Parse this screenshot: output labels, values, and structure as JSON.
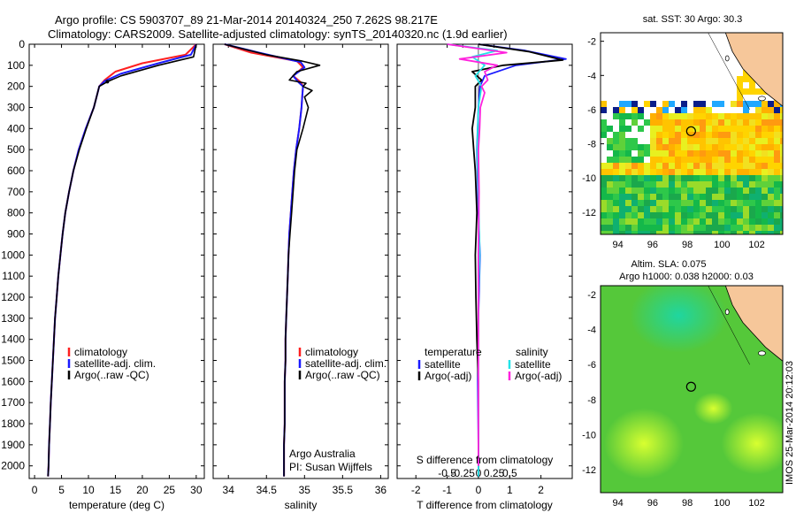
{
  "header": {
    "line1": "Argo profile: CS 5903707_89 21-Mar-2014 20140324_250 7.262S 98.217E",
    "line2": "Climatology: CARS2009. Satellite-adjusted climatology: synTS_20140320.nc (1.9d earlier)"
  },
  "credit": {
    "institution": "Argo Australia",
    "pi": "PI: Susan Wijffels"
  },
  "stamp": "IMOS 25-Mar-2014 20:12:03",
  "colors": {
    "climatology": "#ff2020",
    "satellite": "#1a1aff",
    "argo": "#000000",
    "sat_salinity": "#22e4e8",
    "argo_salinity": "#ff22dd"
  },
  "depth_axis": {
    "ticks": [
      0,
      100,
      200,
      300,
      400,
      500,
      600,
      700,
      800,
      900,
      1000,
      1100,
      1200,
      1300,
      1400,
      1500,
      1600,
      1700,
      1800,
      1900,
      2000
    ],
    "max": 2060
  },
  "chart_data": [
    {
      "type": "line",
      "xlabel": "temperature (deg C)",
      "xlim": [
        -1,
        31.5
      ],
      "xticks": [
        0,
        5,
        10,
        15,
        20,
        25,
        30
      ],
      "legend": [
        "climatology",
        "satellite-adj. clim.",
        "Argo(..raw -QC)"
      ],
      "series": [
        {
          "name": "climatology",
          "points": [
            [
              30,
              0
            ],
            [
              28,
              50
            ],
            [
              20,
              90
            ],
            [
              15,
              130
            ],
            [
              13,
              170
            ],
            [
              12,
              200
            ],
            [
              11,
              300
            ],
            [
              9.5,
              400
            ],
            [
              8.2,
              500
            ],
            [
              7.2,
              600
            ],
            [
              6.4,
              700
            ],
            [
              5.7,
              800
            ],
            [
              5.2,
              900
            ],
            [
              4.8,
              1000
            ],
            [
              4.4,
              1100
            ],
            [
              4.1,
              1200
            ],
            [
              3.8,
              1300
            ],
            [
              3.6,
              1400
            ],
            [
              3.4,
              1500
            ],
            [
              3.2,
              1600
            ],
            [
              3.0,
              1700
            ],
            [
              2.85,
              1800
            ],
            [
              2.7,
              1900
            ],
            [
              2.6,
              2000
            ],
            [
              2.5,
              2050
            ]
          ]
        },
        {
          "name": "satellite-adj. clim.",
          "points": [
            [
              30,
              0
            ],
            [
              29,
              50
            ],
            [
              23,
              90
            ],
            [
              16,
              140
            ],
            [
              13,
              175
            ],
            [
              12,
              200
            ],
            [
              11,
              300
            ],
            [
              9.5,
              400
            ],
            [
              8.2,
              500
            ],
            [
              7.2,
              600
            ],
            [
              6.4,
              700
            ],
            [
              5.7,
              800
            ],
            [
              5.2,
              900
            ],
            [
              4.8,
              1000
            ],
            [
              4.4,
              1100
            ],
            [
              4.1,
              1200
            ],
            [
              3.8,
              1300
            ],
            [
              3.6,
              1400
            ],
            [
              3.4,
              1500
            ],
            [
              3.2,
              1600
            ],
            [
              3.0,
              1700
            ],
            [
              2.85,
              1800
            ],
            [
              2.7,
              1900
            ],
            [
              2.6,
              2000
            ],
            [
              2.5,
              2050
            ]
          ]
        },
        {
          "name": "Argo(..raw -QC)",
          "points": [
            [
              30,
              0
            ],
            [
              29.5,
              60
            ],
            [
              23,
              100
            ],
            [
              16,
              150
            ],
            [
              13.5,
              178
            ],
            [
              12,
              200
            ],
            [
              11,
              300
            ],
            [
              9.6,
              400
            ],
            [
              8.3,
              500
            ],
            [
              7.2,
              600
            ],
            [
              6.4,
              700
            ],
            [
              5.7,
              800
            ],
            [
              5.2,
              900
            ],
            [
              4.8,
              1000
            ],
            [
              4.4,
              1100
            ],
            [
              4.1,
              1200
            ],
            [
              3.8,
              1300
            ],
            [
              3.6,
              1400
            ],
            [
              3.4,
              1500
            ],
            [
              3.2,
              1600
            ],
            [
              3.0,
              1700
            ],
            [
              2.85,
              1800
            ],
            [
              2.7,
              1900
            ],
            [
              2.6,
              2000
            ],
            [
              2.5,
              2050
            ]
          ]
        }
      ]
    },
    {
      "type": "line",
      "xlabel": "salinity",
      "xlim": [
        33.8,
        36.1
      ],
      "xticks": [
        34,
        34.5,
        35,
        35.5,
        36
      ],
      "legend": [
        "climatology",
        "satellite-adj. clim.",
        "Argo(..raw -QC)"
      ],
      "series": [
        {
          "name": "climatology",
          "points": [
            [
              33.95,
              0
            ],
            [
              34.3,
              40
            ],
            [
              34.9,
              80
            ],
            [
              34.98,
              110
            ],
            [
              34.85,
              150
            ],
            [
              34.95,
              180
            ],
            [
              34.98,
              200
            ],
            [
              34.97,
              250
            ],
            [
              34.96,
              300
            ],
            [
              34.93,
              400
            ],
            [
              34.89,
              500
            ],
            [
              34.86,
              600
            ],
            [
              34.84,
              700
            ],
            [
              34.82,
              800
            ],
            [
              34.8,
              900
            ],
            [
              34.79,
              1000
            ],
            [
              34.78,
              1100
            ],
            [
              34.77,
              1200
            ],
            [
              34.76,
              1300
            ],
            [
              34.75,
              1400
            ],
            [
              34.75,
              1500
            ],
            [
              34.74,
              1600
            ],
            [
              34.74,
              1700
            ],
            [
              34.74,
              1800
            ],
            [
              34.73,
              1900
            ],
            [
              34.73,
              2000
            ],
            [
              34.73,
              2050
            ]
          ]
        },
        {
          "name": "satellite-adj. clim.",
          "points": [
            [
              33.95,
              0
            ],
            [
              34.4,
              40
            ],
            [
              34.95,
              85
            ],
            [
              35.0,
              110
            ],
            [
              34.85,
              150
            ],
            [
              34.92,
              180
            ],
            [
              34.98,
              200
            ],
            [
              34.97,
              250
            ],
            [
              34.96,
              300
            ],
            [
              34.93,
              400
            ],
            [
              34.89,
              500
            ],
            [
              34.86,
              600
            ],
            [
              34.84,
              700
            ],
            [
              34.82,
              800
            ],
            [
              34.8,
              900
            ],
            [
              34.79,
              1000
            ],
            [
              34.78,
              1100
            ],
            [
              34.77,
              1200
            ],
            [
              34.76,
              1300
            ],
            [
              34.75,
              1400
            ],
            [
              34.75,
              1500
            ],
            [
              34.74,
              1600
            ],
            [
              34.74,
              1700
            ],
            [
              34.74,
              1800
            ],
            [
              34.73,
              1900
            ],
            [
              34.73,
              2000
            ],
            [
              34.73,
              2050
            ]
          ]
        },
        {
          "name": "Argo(..raw -QC)",
          "points": [
            [
              33.95,
              0
            ],
            [
              34.5,
              50
            ],
            [
              34.97,
              80
            ],
            [
              35.2,
              100
            ],
            [
              34.9,
              130
            ],
            [
              34.8,
              170
            ],
            [
              35.02,
              185
            ],
            [
              34.98,
              200
            ],
            [
              35.1,
              220
            ],
            [
              35.0,
              250
            ],
            [
              35.05,
              300
            ],
            [
              34.98,
              400
            ],
            [
              34.9,
              500
            ],
            [
              34.87,
              600
            ],
            [
              34.85,
              700
            ],
            [
              34.83,
              800
            ],
            [
              34.81,
              900
            ],
            [
              34.79,
              1000
            ],
            [
              34.78,
              1100
            ],
            [
              34.77,
              1200
            ],
            [
              34.76,
              1300
            ],
            [
              34.75,
              1400
            ],
            [
              34.75,
              1500
            ],
            [
              34.74,
              1600
            ],
            [
              34.74,
              1700
            ],
            [
              34.74,
              1800
            ],
            [
              34.73,
              1900
            ],
            [
              34.73,
              2000
            ],
            [
              34.73,
              2050
            ]
          ]
        }
      ]
    },
    {
      "type": "line",
      "xlabel": "T difference from climatology",
      "xlabel_top": "S difference from climatology",
      "xlim_T": [
        -2.6,
        3.0
      ],
      "xticks_T": [
        -2,
        -1,
        0,
        1,
        2
      ],
      "xticks_S": [
        -0.5,
        -0.25,
        0,
        0.25,
        0.5
      ],
      "xticks_S_labels": [
        "-0.5",
        "-0.25",
        "0",
        "0.25",
        "0.5"
      ],
      "legend": {
        "temperature_title": "temperature",
        "salinity_title": "salinity",
        "items": [
          "satellite",
          "Argo(-adj)",
          "satellite",
          "Argo(-adj)"
        ]
      },
      "series": [
        {
          "name": "T satellite",
          "points": [
            [
              0,
              0
            ],
            [
              1.5,
              30
            ],
            [
              2.8,
              70
            ],
            [
              1.2,
              100
            ],
            [
              0.2,
              150
            ],
            [
              0.05,
              200
            ],
            [
              0,
              300
            ],
            [
              -0.05,
              500
            ],
            [
              0,
              800
            ],
            [
              0.05,
              1000
            ],
            [
              0,
              1300
            ],
            [
              -0.02,
              1600
            ],
            [
              0,
              1900
            ],
            [
              0,
              2050
            ]
          ]
        },
        {
          "name": "T Argo(-adj)",
          "points": [
            [
              0,
              0
            ],
            [
              1.6,
              35
            ],
            [
              2.7,
              75
            ],
            [
              0.8,
              100
            ],
            [
              -0.2,
              130
            ],
            [
              0.1,
              170
            ],
            [
              -0.1,
              200
            ],
            [
              -0.1,
              300
            ],
            [
              -0.2,
              400
            ],
            [
              -0.15,
              500
            ],
            [
              -0.1,
              600
            ],
            [
              -0.05,
              800
            ],
            [
              -0.1,
              1000
            ],
            [
              -0.08,
              1200
            ],
            [
              -0.05,
              1400
            ],
            [
              0,
              1600
            ],
            [
              0,
              1800
            ],
            [
              0,
              2000
            ],
            [
              0,
              2050
            ]
          ]
        },
        {
          "name": "S satellite",
          "points": [
            [
              -0.5,
              0
            ],
            [
              0.3,
              30
            ],
            [
              -0.1,
              60
            ],
            [
              0.1,
              100
            ],
            [
              -0.05,
              150
            ],
            [
              0.05,
              200
            ],
            [
              0,
              300
            ],
            [
              -0.02,
              500
            ],
            [
              0,
              700
            ],
            [
              0.02,
              1000
            ],
            [
              0,
              1200
            ],
            [
              0,
              1500
            ],
            [
              0,
              1800
            ],
            [
              0,
              2050
            ]
          ]
        },
        {
          "name": "S Argo(-adj)",
          "points": [
            [
              -0.5,
              0
            ],
            [
              0.45,
              40
            ],
            [
              -0.3,
              70
            ],
            [
              0.3,
              100
            ],
            [
              0.1,
              130
            ],
            [
              0.15,
              170
            ],
            [
              0.05,
              200
            ],
            [
              0.1,
              230
            ],
            [
              0.03,
              300
            ],
            [
              0.02,
              400
            ],
            [
              0,
              500
            ],
            [
              0.01,
              700
            ],
            [
              0,
              1000
            ],
            [
              0,
              1300
            ],
            [
              0,
              1600
            ],
            [
              0,
              2000
            ]
          ]
        }
      ]
    },
    {
      "type": "heatmap",
      "title": "sat. SST: 30 Argo: 30.3",
      "xlim": [
        93,
        103.5
      ],
      "ylim": [
        -13.3,
        -1.5
      ],
      "xticks": [
        94,
        96,
        98,
        100,
        102
      ],
      "yticks": [
        -2,
        -4,
        -6,
        -8,
        -10,
        -12
      ],
      "argo_position": [
        98.217,
        -7.262
      ]
    },
    {
      "type": "heatmap",
      "title": "Altim. SLA: 0.075",
      "title2": "Argo h1000: 0.038 h2000: 0.03",
      "xlim": [
        93,
        103.5
      ],
      "ylim": [
        -13.3,
        -1.5
      ],
      "xticks": [
        94,
        96,
        98,
        100,
        102
      ],
      "yticks": [
        -2,
        -4,
        -6,
        -8,
        -10,
        -12
      ],
      "argo_position": [
        98.217,
        -7.262
      ]
    }
  ]
}
